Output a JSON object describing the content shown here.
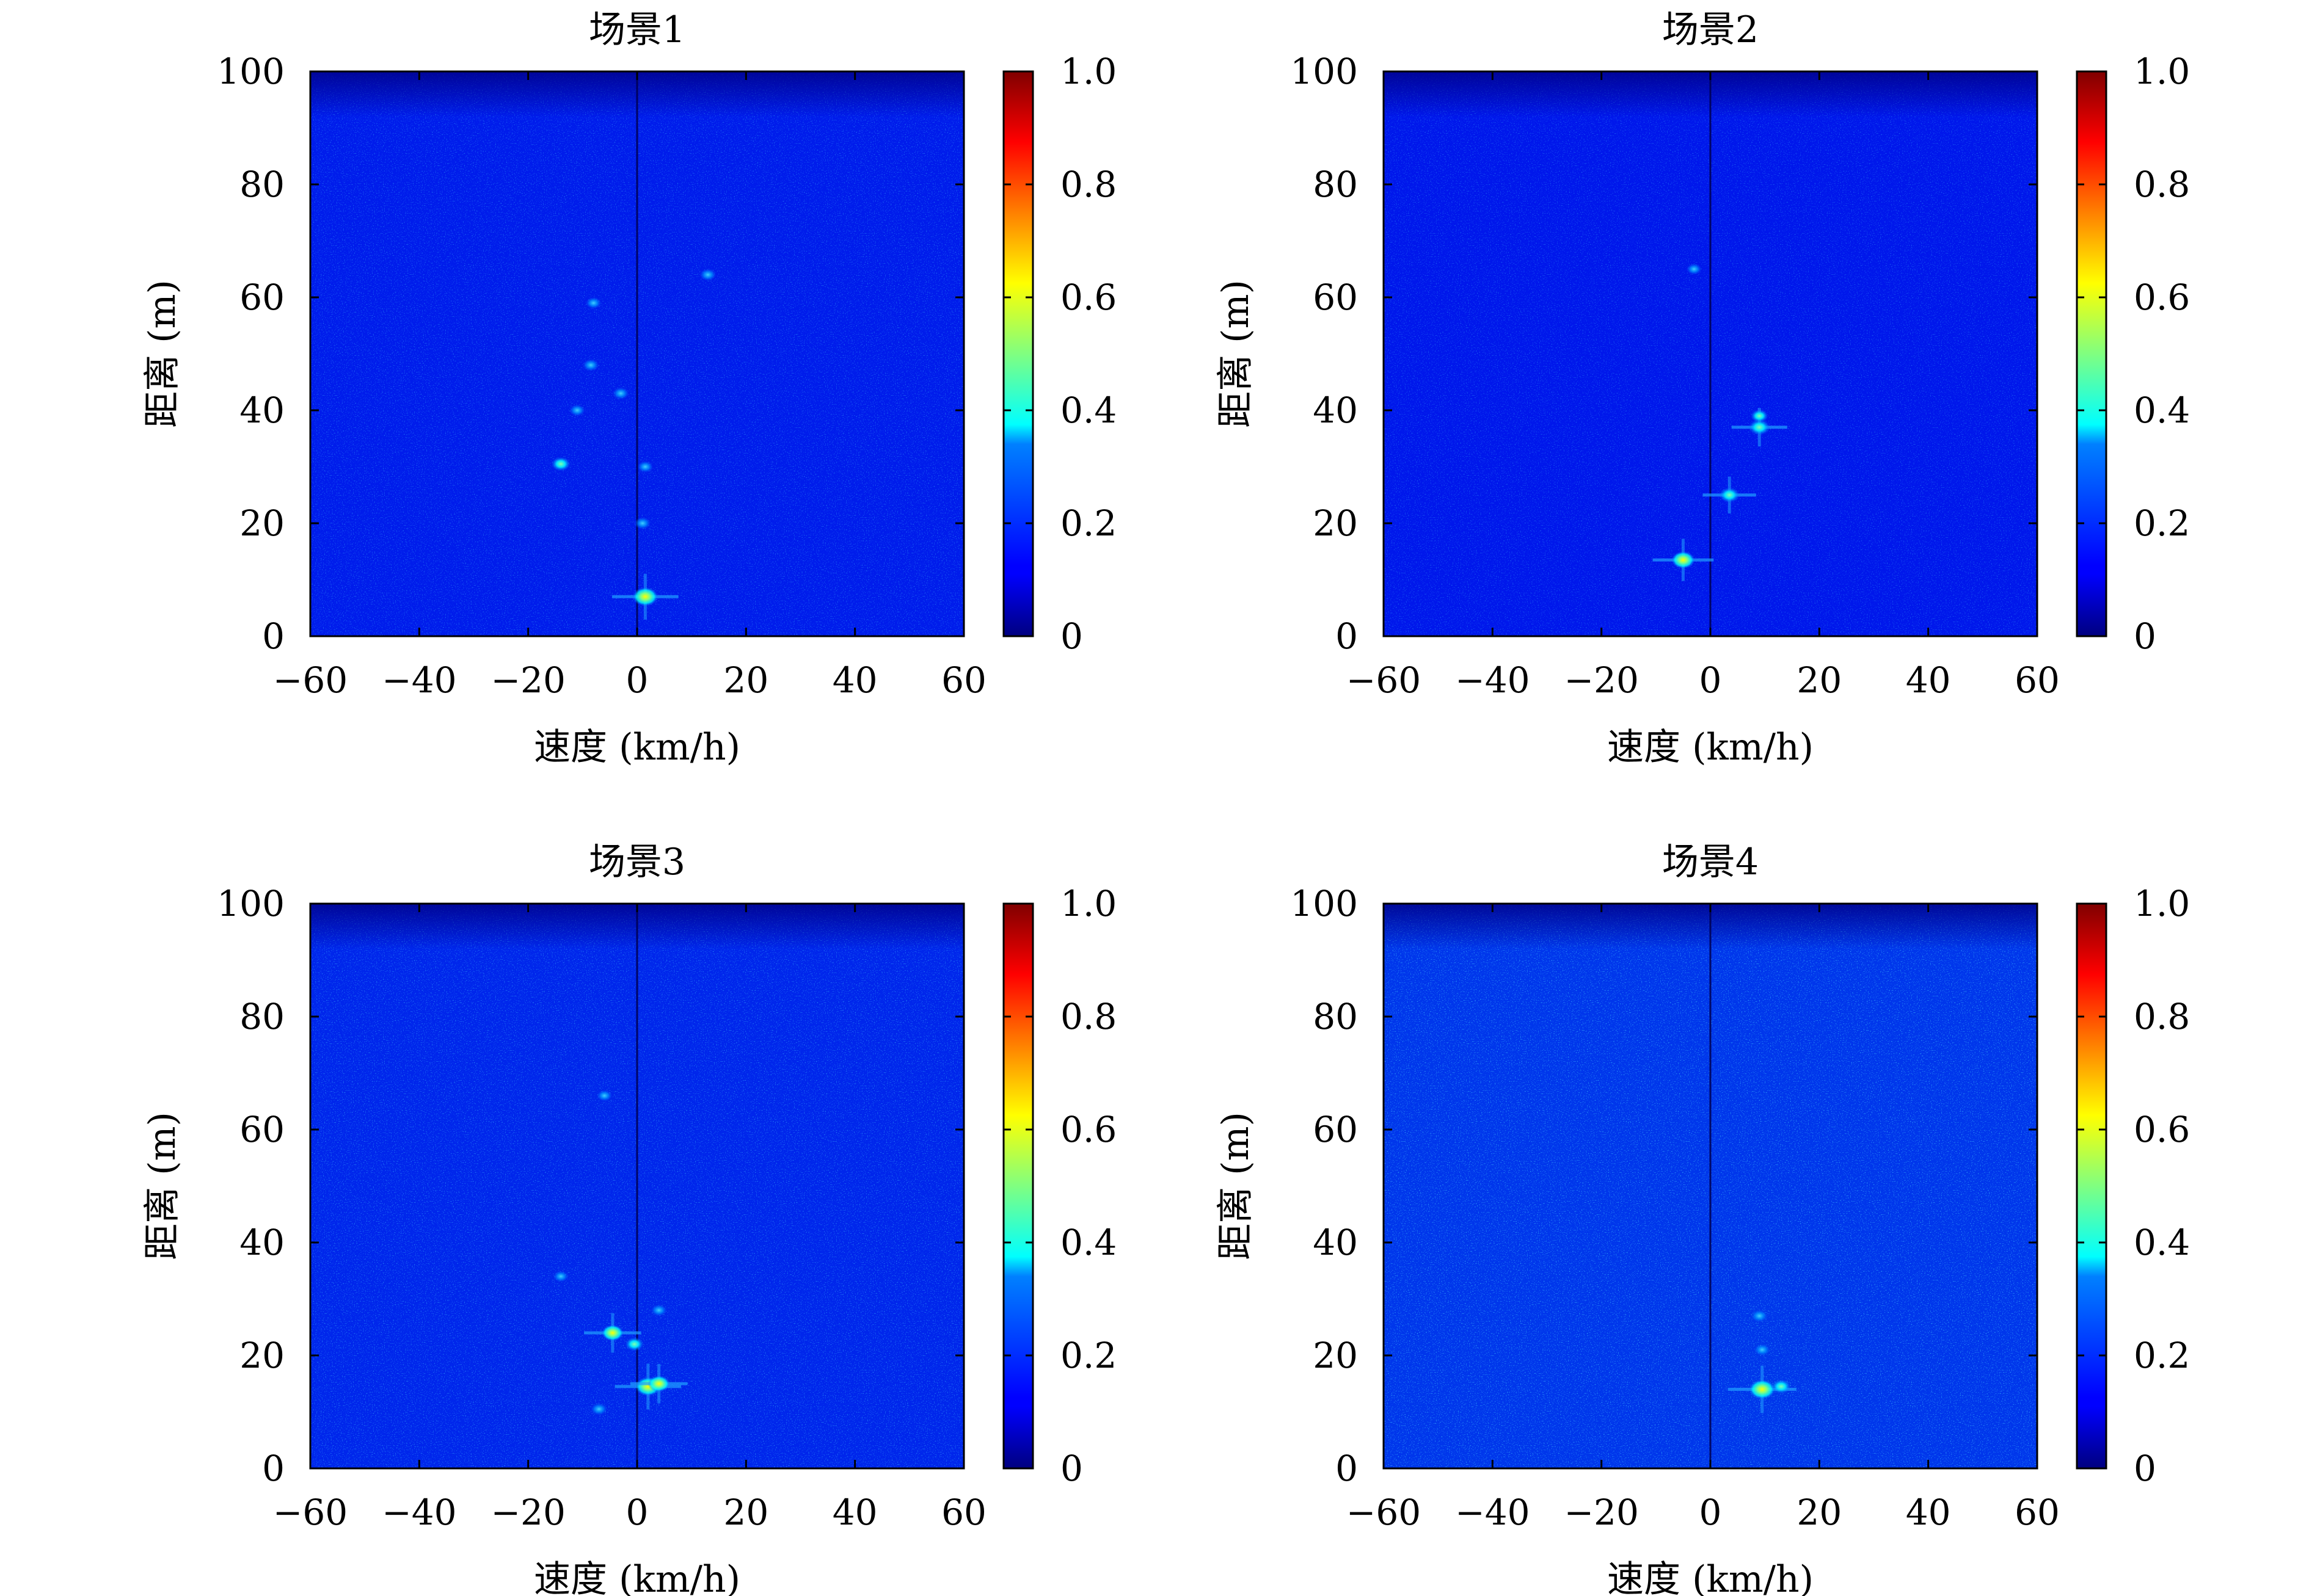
{
  "figure": {
    "background": "#ffffff"
  },
  "colormap": {
    "name": "jet",
    "ticks": [
      0,
      0.2,
      0.4,
      0.6,
      0.8,
      1.0
    ],
    "tick_labels": [
      "0",
      "0.2",
      "0.4",
      "0.6",
      "0.8",
      "1.0"
    ]
  },
  "chart_data": [
    {
      "type": "heatmap",
      "title": "场景1",
      "xlabel": "速度 (km/h)",
      "ylabel": "距离 (m)",
      "xlim": [
        -60,
        60
      ],
      "ylim": [
        0,
        100
      ],
      "xticks": [
        -60,
        -40,
        -20,
        0,
        20,
        40,
        60
      ],
      "xtick_labels": [
        "−60",
        "−40",
        "−20",
        "0",
        "20",
        "40",
        "60"
      ],
      "yticks": [
        0,
        20,
        40,
        60,
        80,
        100
      ],
      "ytick_labels": [
        "0",
        "20",
        "40",
        "60",
        "80",
        "100"
      ],
      "colorbar_range": [
        0,
        1.0
      ],
      "background_level": 0.18,
      "targets": [
        {
          "x": 1.5,
          "y": 7,
          "value": 0.62
        },
        {
          "x": -14,
          "y": 30.5,
          "value": 0.4
        },
        {
          "x": -3,
          "y": 43,
          "value": 0.3
        },
        {
          "x": -8.5,
          "y": 48,
          "value": 0.3
        },
        {
          "x": -11,
          "y": 40,
          "value": 0.28
        },
        {
          "x": -8,
          "y": 59,
          "value": 0.28
        },
        {
          "x": 13,
          "y": 64,
          "value": 0.3
        },
        {
          "x": 1,
          "y": 20,
          "value": 0.3
        },
        {
          "x": 1.5,
          "y": 30,
          "value": 0.28
        }
      ]
    },
    {
      "type": "heatmap",
      "title": "场景2",
      "xlabel": "速度 (km/h)",
      "ylabel": "距离 (m)",
      "xlim": [
        -60,
        60
      ],
      "ylim": [
        0,
        100
      ],
      "xticks": [
        -60,
        -40,
        -20,
        0,
        20,
        40,
        60
      ],
      "xtick_labels": [
        "−60",
        "−40",
        "−20",
        "0",
        "20",
        "40",
        "60"
      ],
      "yticks": [
        0,
        20,
        40,
        60,
        80,
        100
      ],
      "ytick_labels": [
        "0",
        "20",
        "40",
        "60",
        "80",
        "100"
      ],
      "colorbar_range": [
        0,
        1.0
      ],
      "background_level": 0.17,
      "targets": [
        {
          "x": -5,
          "y": 13.5,
          "value": 0.55
        },
        {
          "x": 3.5,
          "y": 25,
          "value": 0.45
        },
        {
          "x": 9,
          "y": 37,
          "value": 0.48
        },
        {
          "x": 9,
          "y": 39,
          "value": 0.35
        },
        {
          "x": -3,
          "y": 65,
          "value": 0.26
        }
      ]
    },
    {
      "type": "heatmap",
      "title": "场景3",
      "xlabel": "速度 (km/h)",
      "ylabel": "距离 (m)",
      "xlim": [
        -60,
        60
      ],
      "ylim": [
        0,
        100
      ],
      "xticks": [
        -60,
        -40,
        -20,
        0,
        20,
        40,
        60
      ],
      "xtick_labels": [
        "−60",
        "−40",
        "−20",
        "0",
        "20",
        "40",
        "60"
      ],
      "yticks": [
        0,
        20,
        40,
        60,
        80,
        100
      ],
      "ytick_labels": [
        "0",
        "20",
        "40",
        "60",
        "80",
        "100"
      ],
      "colorbar_range": [
        0,
        1.0
      ],
      "background_level": 0.2,
      "targets": [
        {
          "x": 2,
          "y": 14.5,
          "value": 0.62
        },
        {
          "x": 4,
          "y": 15,
          "value": 0.5
        },
        {
          "x": -4.5,
          "y": 24,
          "value": 0.5
        },
        {
          "x": -0.5,
          "y": 22,
          "value": 0.38
        },
        {
          "x": -7,
          "y": 10.5,
          "value": 0.3
        },
        {
          "x": -14,
          "y": 34,
          "value": 0.26
        },
        {
          "x": 4,
          "y": 28,
          "value": 0.28
        },
        {
          "x": -6,
          "y": 66,
          "value": 0.26
        }
      ]
    },
    {
      "type": "heatmap",
      "title": "场景4",
      "xlabel": "速度 (km/h)",
      "ylabel": "距离 (m)",
      "xlim": [
        -60,
        60
      ],
      "ylim": [
        0,
        100
      ],
      "xticks": [
        -60,
        -40,
        -20,
        0,
        20,
        40,
        60
      ],
      "xtick_labels": [
        "−60",
        "−40",
        "−20",
        "0",
        "20",
        "40",
        "60"
      ],
      "yticks": [
        0,
        20,
        40,
        60,
        80,
        100
      ],
      "ytick_labels": [
        "0",
        "20",
        "40",
        "60",
        "80",
        "100"
      ],
      "colorbar_range": [
        0,
        1.0
      ],
      "background_level": 0.23,
      "targets": [
        {
          "x": 9.5,
          "y": 14,
          "value": 0.65
        },
        {
          "x": 13,
          "y": 14.5,
          "value": 0.4
        },
        {
          "x": 9,
          "y": 27,
          "value": 0.3
        },
        {
          "x": 9.5,
          "y": 21,
          "value": 0.28
        }
      ]
    }
  ]
}
